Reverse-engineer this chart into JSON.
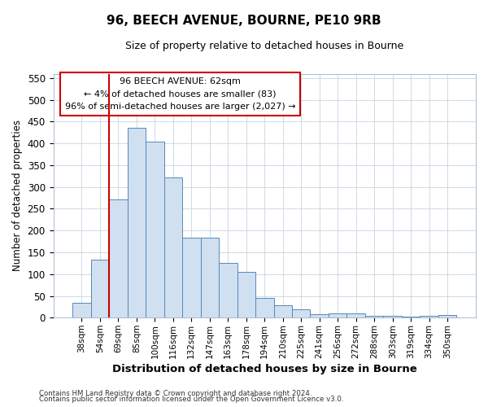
{
  "title": "96, BEECH AVENUE, BOURNE, PE10 9RB",
  "subtitle": "Size of property relative to detached houses in Bourne",
  "xlabel": "Distribution of detached houses by size in Bourne",
  "ylabel": "Number of detached properties",
  "categories": [
    "38sqm",
    "54sqm",
    "69sqm",
    "85sqm",
    "100sqm",
    "116sqm",
    "132sqm",
    "147sqm",
    "163sqm",
    "178sqm",
    "194sqm",
    "210sqm",
    "225sqm",
    "241sqm",
    "256sqm",
    "272sqm",
    "288sqm",
    "303sqm",
    "319sqm",
    "334sqm",
    "350sqm"
  ],
  "values": [
    35,
    133,
    272,
    435,
    405,
    322,
    184,
    183,
    126,
    105,
    46,
    29,
    20,
    8,
    10,
    10,
    5,
    5,
    3,
    5,
    6
  ],
  "bar_color": "#d0e0f0",
  "bar_edgecolor": "#5588bb",
  "vline_x": 1.5,
  "vline_color": "#cc0000",
  "ylim": [
    0,
    560
  ],
  "yticks": [
    0,
    50,
    100,
    150,
    200,
    250,
    300,
    350,
    400,
    450,
    500,
    550
  ],
  "annotation_title": "96 BEECH AVENUE: 62sqm",
  "annotation_line1": "← 4% of detached houses are smaller (83)",
  "annotation_line2": "96% of semi-detached houses are larger (2,027) →",
  "annotation_box_color": "#ffffff",
  "annotation_box_edgecolor": "#cc0000",
  "footer_line1": "Contains HM Land Registry data © Crown copyright and database right 2024.",
  "footer_line2": "Contains public sector information licensed under the Open Government Licence v3.0.",
  "bg_color": "#ffffff",
  "plot_bg_color": "#ffffff"
}
